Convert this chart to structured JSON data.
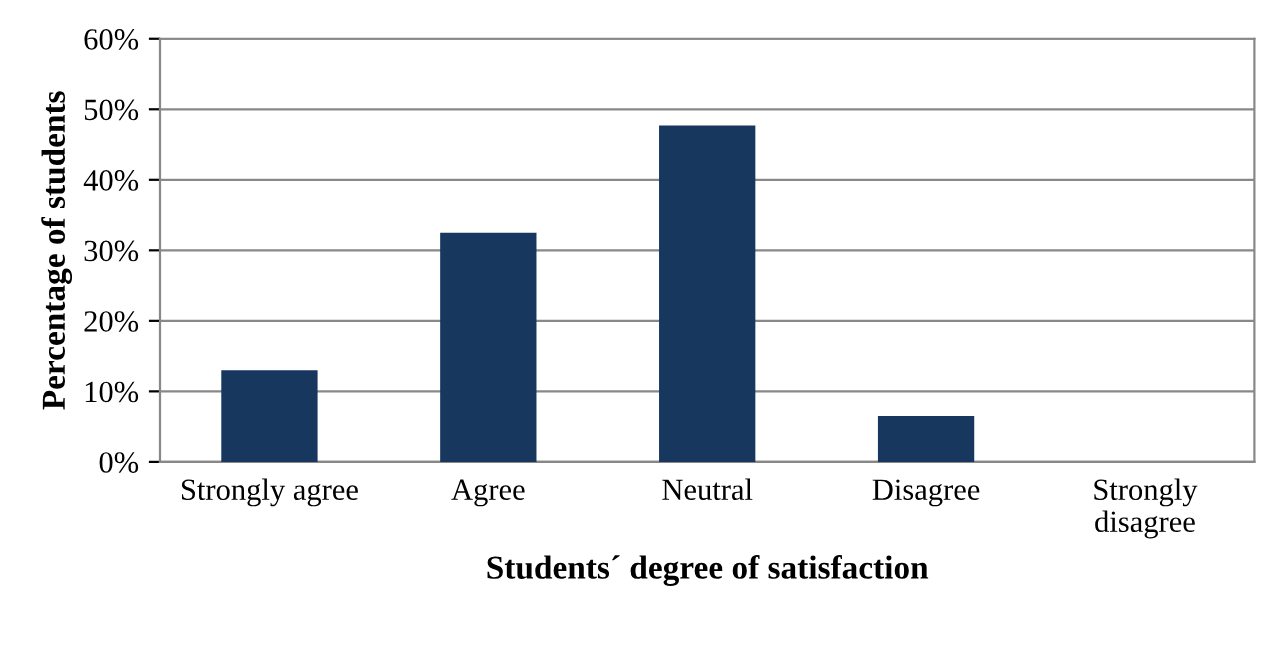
{
  "chart_data": {
    "type": "bar",
    "xlabel": "Students´ degree of satisfaction",
    "ylabel": "Percentage of students",
    "categories": [
      "Strongly agree",
      "Agree",
      "Neutral",
      "Disagree",
      "Strongly\ndisagree"
    ],
    "values": [
      13,
      32.5,
      47.7,
      6.5,
      0
    ],
    "color": "#17375e",
    "ylim": [
      0,
      60
    ],
    "yticks": [
      {
        "value": 0,
        "label": "0%"
      },
      {
        "value": 10,
        "label": "10%"
      },
      {
        "value": 20,
        "label": "20%"
      },
      {
        "value": 30,
        "label": "30%"
      },
      {
        "value": 40,
        "label": "40%"
      },
      {
        "value": 50,
        "label": "50%"
      },
      {
        "value": 60,
        "label": "60%"
      }
    ],
    "grid": "y"
  }
}
